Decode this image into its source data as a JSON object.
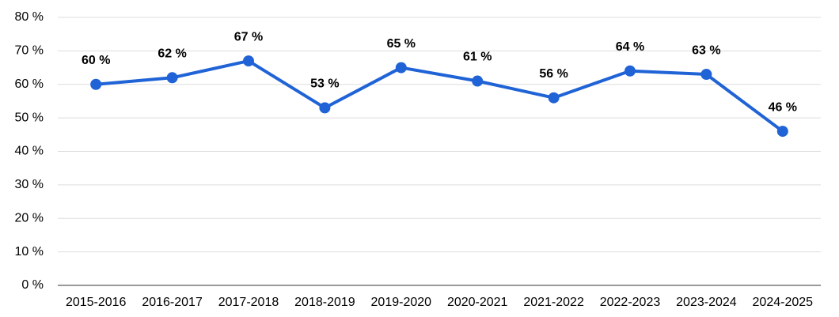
{
  "chart_data": {
    "type": "line",
    "categories": [
      "2015-2016",
      "2016-2017",
      "2017-2018",
      "2018-2019",
      "2019-2020",
      "2020-2021",
      "2021-2022",
      "2022-2023",
      "2023-2024",
      "2024-2025"
    ],
    "series": [
      {
        "color": "#1f63d6",
        "values": [
          60,
          62,
          67,
          53,
          65,
          61,
          56,
          64,
          63,
          46
        ],
        "value_labels": [
          "60 %",
          "62 %",
          "67 %",
          "53 %",
          "65 %",
          "61 %",
          "56 %",
          "64 %",
          "63 %",
          "46 %"
        ]
      }
    ],
    "ylim": [
      0,
      80
    ],
    "yticks": [
      {
        "value": 0,
        "label": "0 %"
      },
      {
        "value": 10,
        "label": "10 %"
      },
      {
        "value": 20,
        "label": "20 %"
      },
      {
        "value": 30,
        "label": "30 %"
      },
      {
        "value": 40,
        "label": "40 %"
      },
      {
        "value": 50,
        "label": "50 %"
      },
      {
        "value": 60,
        "label": "60 %"
      },
      {
        "value": 70,
        "label": "70 %"
      },
      {
        "value": 80,
        "label": "80 %"
      }
    ],
    "grid": true
  }
}
